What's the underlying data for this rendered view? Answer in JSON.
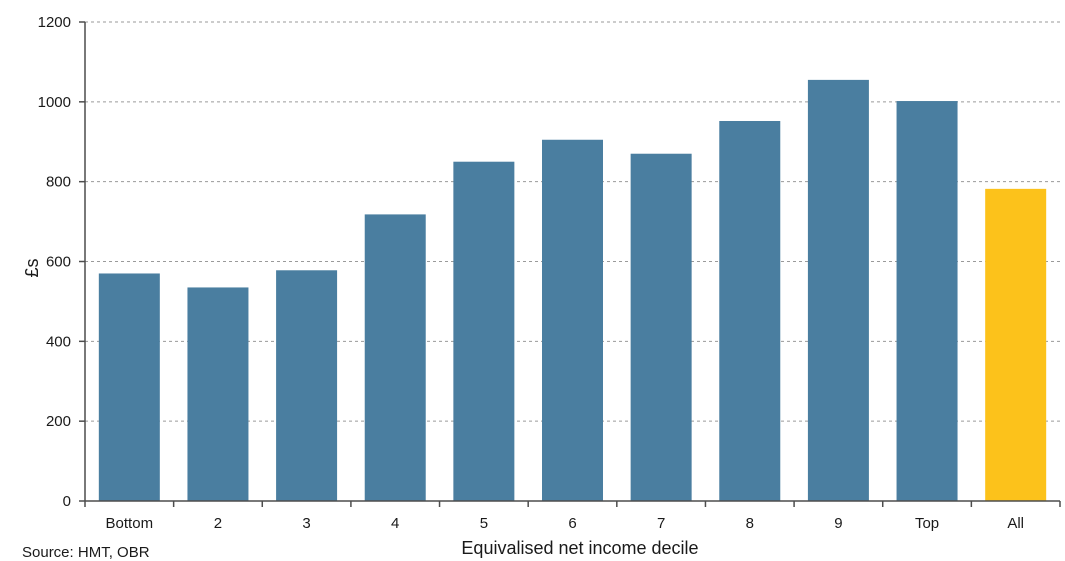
{
  "chart_data": {
    "type": "bar",
    "title": "",
    "xlabel": "Equivalised net income decile",
    "ylabel": "£s",
    "source": "Source: HMT, OBR",
    "categories": [
      "Bottom",
      "2",
      "3",
      "4",
      "5",
      "6",
      "7",
      "8",
      "9",
      "Top",
      "All"
    ],
    "values": [
      570,
      535,
      578,
      718,
      850,
      905,
      870,
      952,
      1055,
      1002,
      782
    ],
    "highlight_category": "All",
    "colors": {
      "bar": "#4a7ea0",
      "highlight": "#fcc21b",
      "grid": "#9a9a9a",
      "axis": "#4d4d4d"
    },
    "yticks": [
      0,
      200,
      400,
      600,
      800,
      1000,
      1200
    ],
    "ylim": [
      0,
      1200
    ],
    "grid": true,
    "grid_style": "dashed horizontal",
    "legend": "none"
  }
}
